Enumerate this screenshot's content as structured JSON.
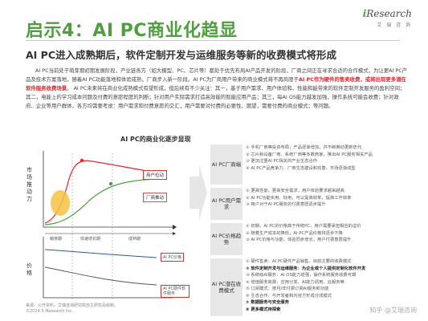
{
  "header": {
    "title": "启示4：AI PC商业化趋显",
    "subtitle": "AI PC进入成熟期后，软件定制开发与运维服务等新的收费模式将形成"
  },
  "logo": {
    "brand_prefix": "i",
    "brand_rest": "Research",
    "sub": "艾 瑞 咨 询"
  },
  "body": {
    "part1": "AI PC当前处于萌芽期初期发展阶段，产业链各方（如大模型、PC、芯片等）都处于优先布局AI产品开发的阶段，厂商之间正在寻求合适的合作模式，为让更AI PC产品及技术方案落地，随着AI PC功能落地和体验成熟，厂商步入新一阶段。AI PC为厂商用户带来的商业模式将不再局限于AI PC作为硬件的售卖收费，或将出现更多潜在软件服务收费场景。",
    "highlight": "AI PC作为硬件的售卖收费，或将出现更多潜在软件服务收费场景",
    "part2": "AI PC未来将在商业化成熟模式有望形成，但后续有不少关注：其一，基于用户需求、用户体验和、性能和能带来的软件定制开发服务的盈利空间；其二，电能上的学习成本问题及付费的意愿程度的判断；针对用户实际需求打造高效能的智能应用产品；其三，每AI OS能力越发加强，操作系统可能会收费；针对政府、企业等用户群体，各方均需要考虑：用户需求和付费意愿的交汇，用户需要对付费的必要性、期望，需要付费的商业模式；等问题。"
  },
  "chart": {
    "title": "AI PC的商业化逐步显现",
    "y_upper_label": "市场推动力",
    "y_lower_label": "价格",
    "legend_user": "用户拉动",
    "legend_vendor": "厂商推动",
    "phase_labels": [
      "萌芽期",
      "快速增长期",
      "成熟期"
    ],
    "price_label_1": "AI PC价格",
    "price_label_2": "AI PC硬件软件服务"
  },
  "rows": [
    {
      "label": "AI PC厂商端",
      "lines": [
        "① 手机厂商等投资布局，产品逐渐增加，并不断推动更新迭代",
        "② 芯片和设备厂商、系统厂商等多数商家，推出AI PC服务相关产品",
        "③ 更加注重AI PC相关的产业生态合作",
        "④ AI PC产品竞争力、厂商生态建设和完善，市场逐渐成型"
      ]
    },
    {
      "label": "AI PC用户需求",
      "lines": [
        "① 更高性能、更高安全需求，用户体验要求越来越高",
        "② AI PC功能实用、好用，可以提高效率，提高工作效率",
        "③ 用户对于AI PC服务的付费意愿逐步提升"
      ]
    },
    {
      "label": "AI PC价格趋势",
      "lines": [
        "① 初期，AI PC的价格高于传统PC，用户需要承担相应的溢价",
        "② 随着生产成本的降低，AI PC产品价格将逐步下降",
        "③ AI PC价格与功能、体验同步增长，用户付费意愿提升"
      ]
    },
    {
      "label": "AI PC潜在收费模式",
      "lines": [
        "① 硬件售卖：AI PC硬件产品销售，目前主要的收费模式",
        "② 软件定制开发与运维服务：为企业或个人提供定制化软件开发",
        "③ 系统级AI服务：AI OS能力增强，操作系统服务收费可期",
        "④ 增值服务收费：应用分发、AI能力调用、云服务等",
        "⑤ 订阅模式：按月/年付费订阅AI服务和功能",
        "⑥ 生态合作：与开发者和内容方形成分成模式",
        "⑦ 数据服务与安全服务",
        "⑧ 更多模式待探索"
      ]
    }
  ],
  "source": {
    "line1": "来源：公开资料，艾瑞咨询研究院自主研究及绘制。",
    "line2": "©2024.5 iResearch Inc."
  },
  "watermark": "知乎 @艾瑞咨询"
}
